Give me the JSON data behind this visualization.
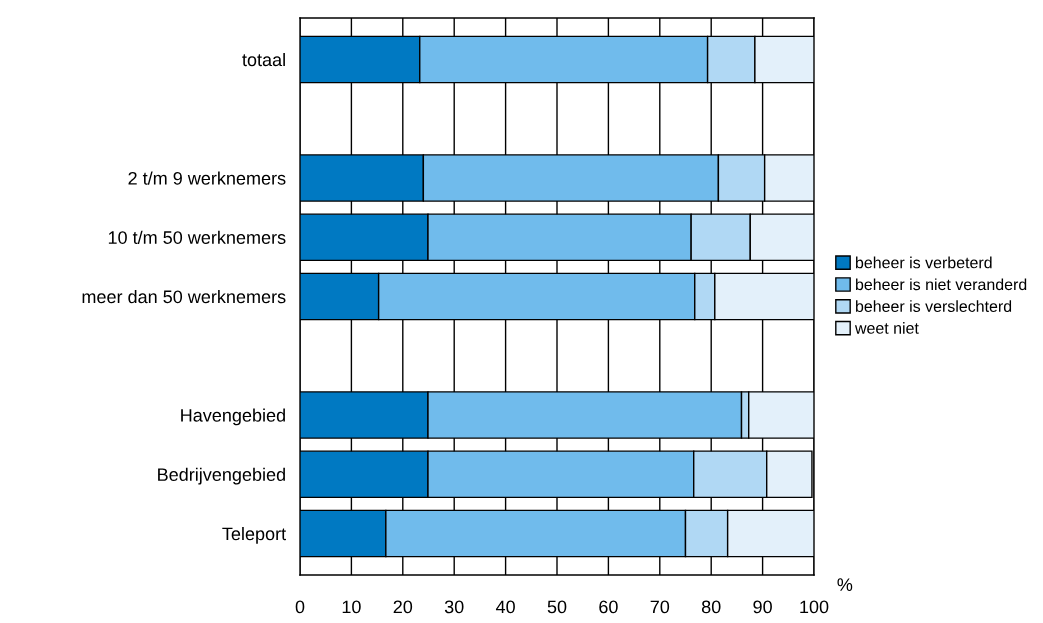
{
  "chart_data": {
    "type": "bar",
    "orientation": "horizontal",
    "stacked": true,
    "categories": [
      "totaal",
      null,
      "2 t/m 9 werknemers",
      "10 t/m 50 werknemers",
      "meer dan 50 werknemers",
      null,
      "Havengebied",
      "Bedrijvengebied",
      "Teleport"
    ],
    "series": [
      {
        "name": "beheer is verbeterd",
        "color": "#0079c2",
        "values": [
          23.3,
          null,
          24.0,
          24.9,
          15.3,
          null,
          24.9,
          24.9,
          16.7
        ]
      },
      {
        "name": "beheer is niet veranderd",
        "color": "#70bbec",
        "values": [
          56.0,
          null,
          57.4,
          51.2,
          61.5,
          null,
          61.0,
          51.7,
          58.3
        ]
      },
      {
        "name": "beheer is verslechterd",
        "color": "#b0d8f4",
        "values": [
          9.2,
          null,
          9.0,
          11.5,
          3.9,
          null,
          1.4,
          14.2,
          8.2
        ]
      },
      {
        "name": "weet niet",
        "color": "#e3f0fa",
        "values": [
          11.5,
          null,
          9.6,
          12.4,
          19.3,
          null,
          12.7,
          8.8,
          16.8
        ]
      }
    ],
    "xlim": [
      0,
      100
    ],
    "xticks": [
      0,
      10,
      20,
      30,
      40,
      50,
      60,
      70,
      80,
      90,
      100
    ],
    "grid": "x",
    "legend": "right",
    "annotations": [
      "%"
    ]
  }
}
